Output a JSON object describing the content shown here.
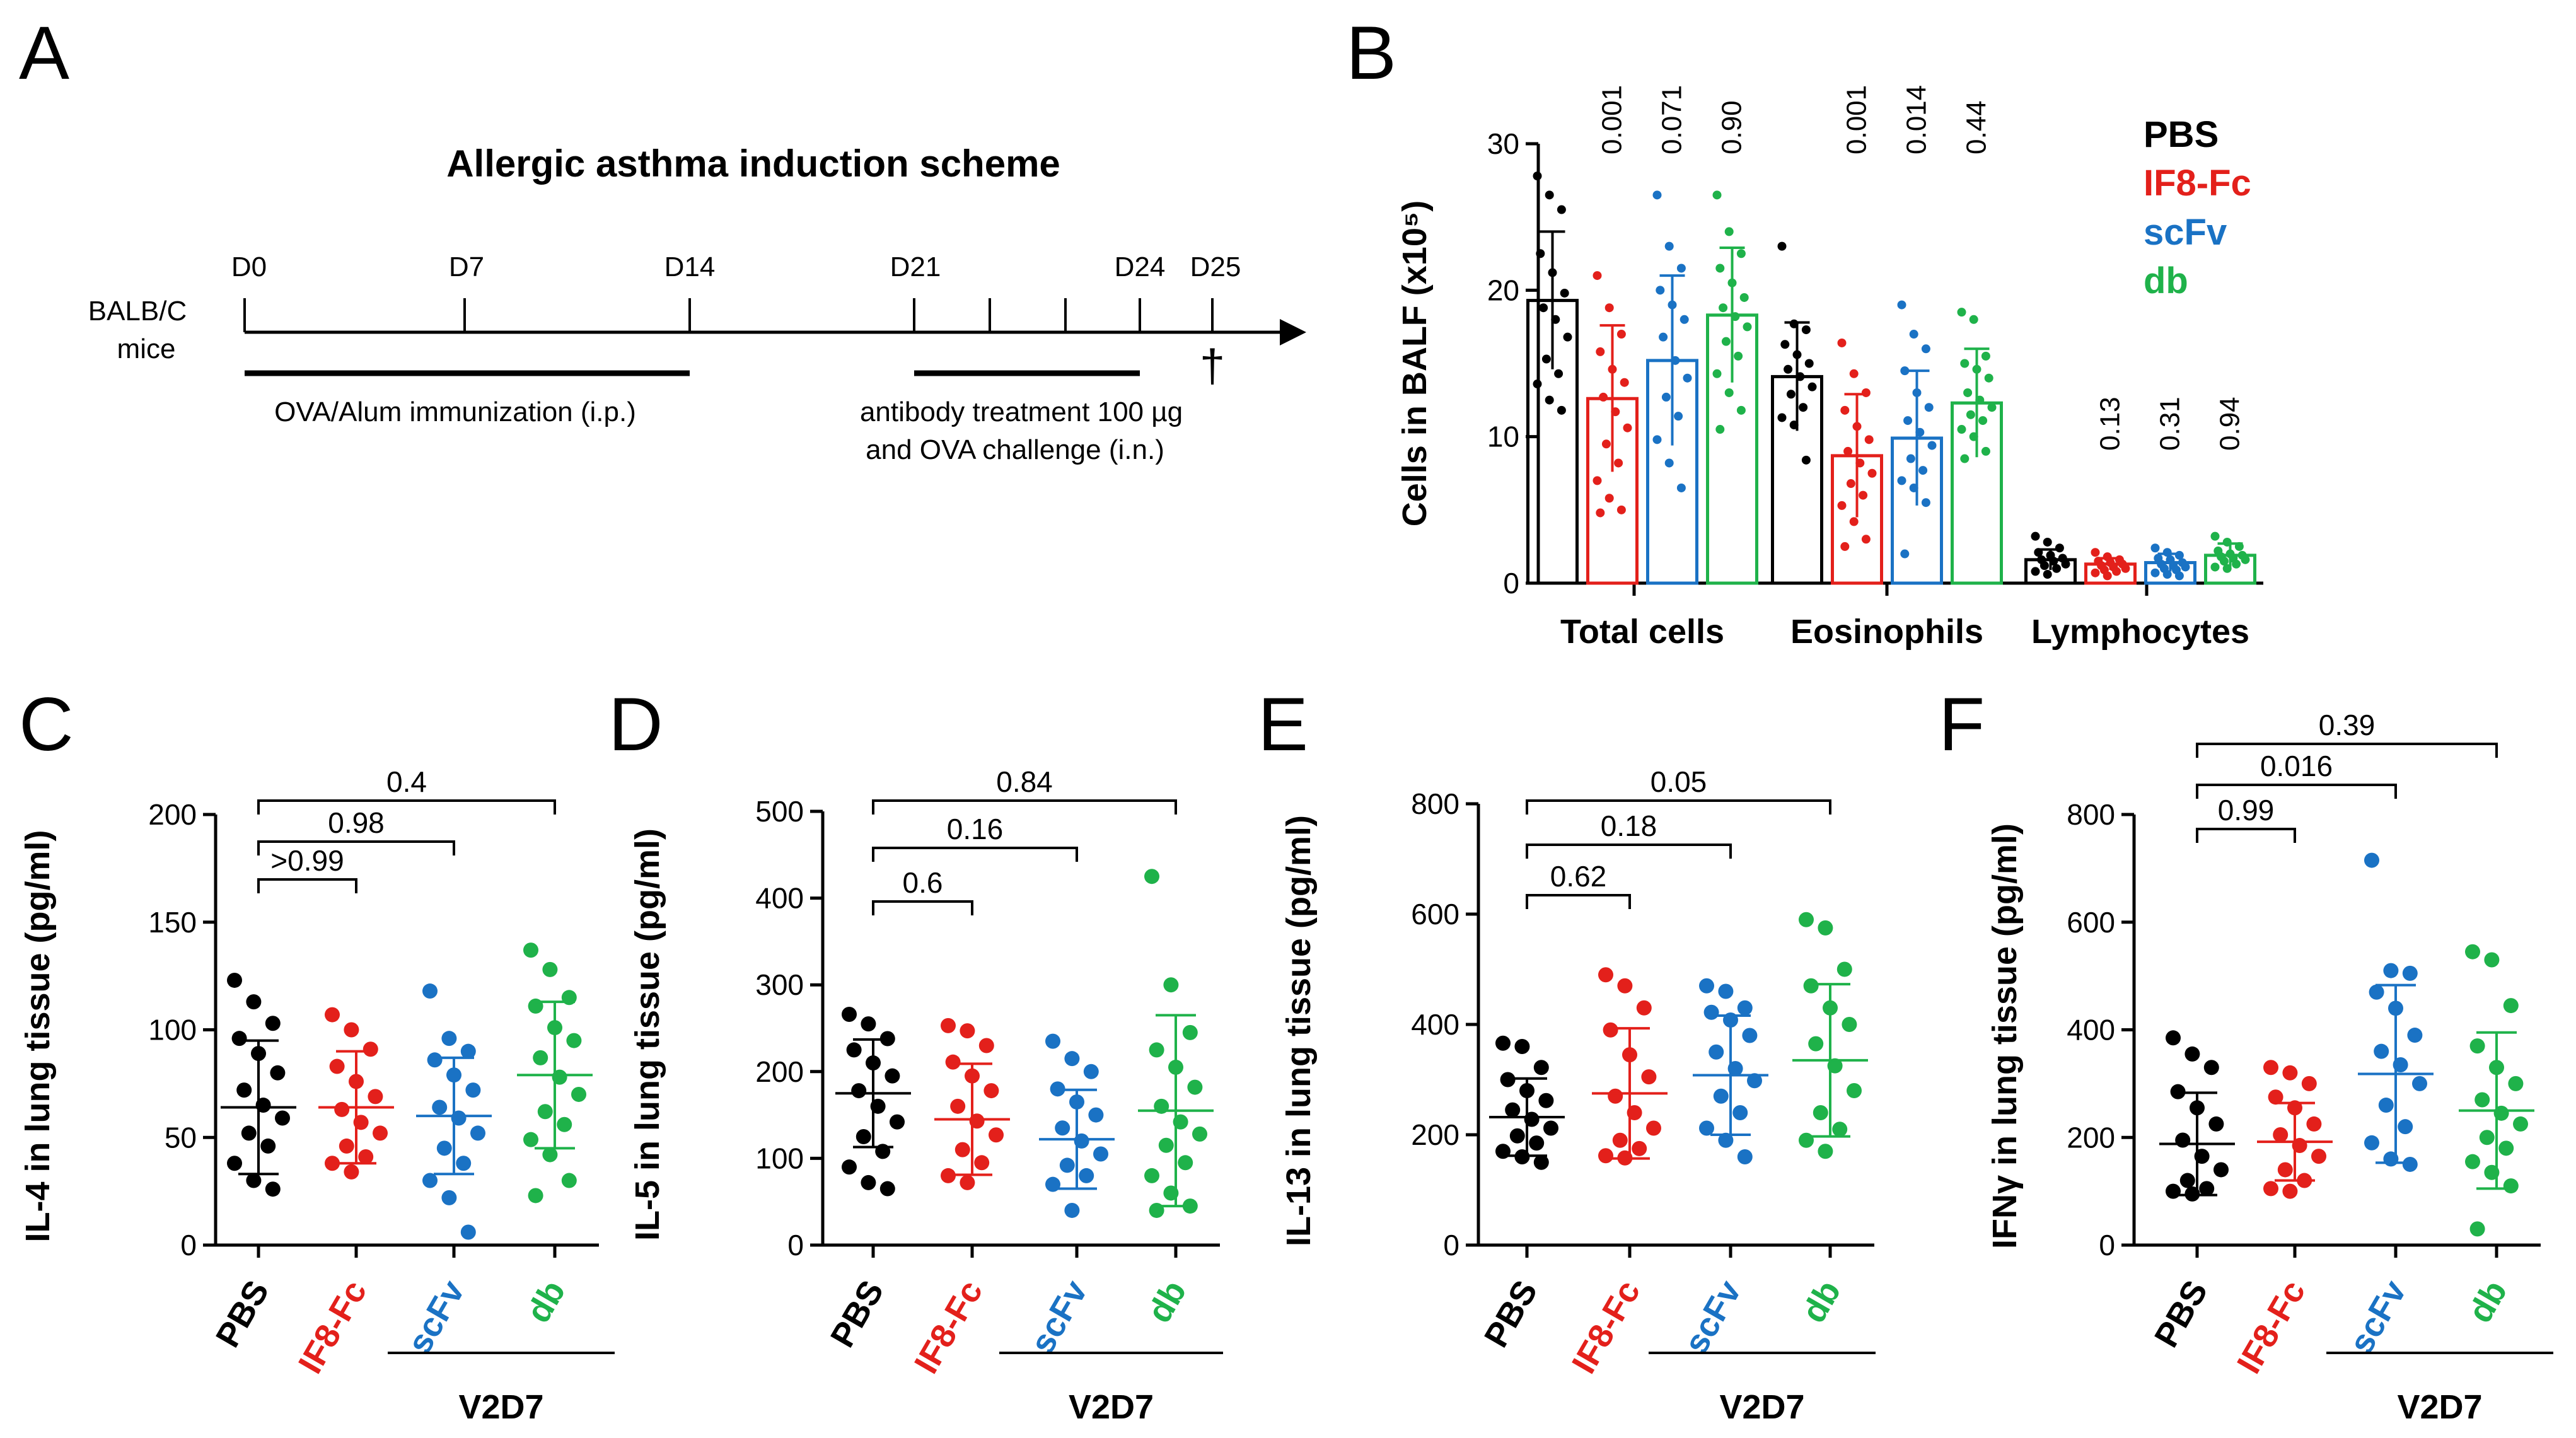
{
  "colors": {
    "pbs": "#000000",
    "if8fc": "#e3201b",
    "scfv": "#1a72c4",
    "db": "#1fb24a"
  },
  "scheme": {
    "panel_label": "A",
    "title": "Allergic asthma induction scheme",
    "subject_line1": "BALB/C",
    "subject_line2": "mice",
    "days": [
      "D0",
      "D7",
      "D14",
      "D21",
      "D24",
      "D25"
    ],
    "immunization": "OVA/Alum immunization (i.p.)",
    "treatment_line1": "antibody treatment 100 µg",
    "treatment_line2": "and OVA challenge (i.n.)",
    "sacrifice": "†"
  },
  "chart_data": [
    {
      "panel": "B",
      "type": "bar",
      "ylabel": "Cells in BALF (x10⁵)",
      "ylim": [
        0,
        30
      ],
      "yticks": [
        0,
        10,
        20,
        30
      ],
      "categories": [
        "Total cells",
        "Eosinophils",
        "Lymphocytes"
      ],
      "legend": [
        "PBS",
        "IF8-Fc",
        "scFv",
        "db"
      ],
      "series": [
        {
          "name": "PBS",
          "values": [
            19.3,
            14.1,
            1.6
          ],
          "errors": [
            4.7,
            3.7,
            0.7
          ],
          "points": [
            [
              27.8,
              26.5,
              25.5,
              22.5,
              21.2,
              19.8,
              18.8,
              18.0,
              16.8,
              15.3,
              14.3,
              13.6,
              12.5,
              11.8
            ],
            [
              23.0,
              17.7,
              17.3,
              16.3,
              15.6,
              15.0,
              14.6,
              14.1,
              13.4,
              12.9,
              12.0,
              11.3,
              10.8,
              8.4
            ],
            [
              3.2,
              2.8,
              2.4,
              2.1,
              1.9,
              1.7,
              1.6,
              1.5,
              1.3,
              1.2,
              1.0,
              0.8,
              0.6
            ]
          ]
        },
        {
          "name": "IF8-Fc",
          "values": [
            12.6,
            8.7,
            1.3
          ],
          "errors": [
            5.0,
            4.2,
            0.4
          ],
          "points": [
            [
              21.0,
              18.8,
              17.0,
              15.8,
              14.6,
              13.7,
              12.7,
              11.7,
              10.6,
              9.5,
              8.2,
              7.0,
              5.8,
              5.0,
              4.8
            ],
            [
              16.4,
              14.3,
              13.0,
              11.8,
              10.7,
              9.8,
              9.0,
              8.2,
              7.5,
              6.8,
              6.0,
              5.3,
              4.2,
              3.0,
              2.5
            ],
            [
              2.1,
              1.8,
              1.6,
              1.5,
              1.4,
              1.3,
              1.2,
              1.1,
              1.0,
              0.9,
              0.8,
              0.7,
              0.5
            ]
          ]
        },
        {
          "name": "scFv",
          "values": [
            15.2,
            9.9,
            1.4
          ],
          "errors": [
            5.8,
            4.6,
            0.6
          ],
          "points": [
            [
              26.5,
              23.0,
              21.5,
              20.0,
              19.0,
              18.0,
              16.8,
              15.2,
              14.0,
              12.7,
              11.4,
              9.8,
              8.2,
              6.5
            ],
            [
              19.0,
              17.0,
              16.0,
              14.5,
              13.0,
              12.0,
              11.1,
              10.3,
              9.4,
              8.5,
              7.7,
              7.0,
              6.5,
              5.5,
              2.0
            ],
            [
              2.4,
              2.1,
              1.9,
              1.7,
              1.6,
              1.4,
              1.3,
              1.2,
              1.1,
              1.0,
              0.9,
              0.7,
              0.6,
              0.5
            ]
          ]
        },
        {
          "name": "db",
          "values": [
            18.3,
            12.3,
            1.9
          ],
          "errors": [
            4.6,
            3.7,
            0.8
          ],
          "points": [
            [
              26.5,
              24.0,
              22.5,
              21.5,
              20.5,
              19.5,
              18.8,
              18.2,
              17.5,
              16.5,
              15.5,
              14.3,
              13.0,
              11.8,
              10.5
            ],
            [
              18.5,
              18.0,
              15.5,
              15.0,
              14.6,
              14.0,
              13.0,
              12.5,
              12.0,
              11.5,
              11.1,
              10.5,
              10.0,
              9.0,
              8.5
            ],
            [
              3.2,
              2.8,
              2.5,
              2.2,
              2.0,
              1.9,
              1.8,
              1.7,
              1.6,
              1.5,
              1.3,
              1.1,
              1.0
            ]
          ]
        }
      ],
      "pvalues": [
        [
          "0.001",
          "0.071",
          "0.90"
        ],
        [
          "0.001",
          "0.014",
          "0.44"
        ],
        [
          "0.13",
          "0.31",
          "0.94"
        ]
      ]
    },
    {
      "panel": "C",
      "type": "scatter",
      "ylabel": "IL-4 in lung tissue (pg/ml)",
      "ylim": [
        0,
        200
      ],
      "yticks": [
        0,
        50,
        100,
        150,
        200
      ],
      "categories": [
        "PBS",
        "IF8-Fc",
        "scFv",
        "db"
      ],
      "group_label": "V2D7",
      "series": [
        {
          "name": "PBS",
          "mean": 64,
          "sd": 31,
          "points": [
            123,
            113,
            103,
            96,
            89,
            80,
            72,
            65,
            59,
            52,
            46,
            38,
            30,
            26
          ]
        },
        {
          "name": "IF8-Fc",
          "mean": 64,
          "sd": 26,
          "points": [
            107,
            100,
            91,
            83,
            76,
            69,
            63,
            57,
            52,
            46,
            41,
            38,
            34
          ]
        },
        {
          "name": "scFv",
          "mean": 60,
          "sd": 27,
          "points": [
            118,
            96,
            90,
            86,
            79,
            72,
            64,
            59,
            52,
            45,
            38,
            30,
            22,
            6
          ]
        },
        {
          "name": "db",
          "mean": 79,
          "sd": 34,
          "points": [
            137,
            128,
            115,
            111,
            101,
            95,
            87,
            78,
            70,
            62,
            56,
            49,
            42,
            30,
            23
          ]
        }
      ],
      "brackets": [
        {
          "from": 0,
          "to": 1,
          "p": ">0.99"
        },
        {
          "from": 0,
          "to": 2,
          "p": "0.98"
        },
        {
          "from": 0,
          "to": 3,
          "p": "0.4"
        }
      ]
    },
    {
      "panel": "D",
      "type": "scatter",
      "ylabel": "IL-5 in lung tissue (pg/ml)",
      "ylim": [
        0,
        500
      ],
      "yticks": [
        0,
        100,
        200,
        300,
        400,
        500
      ],
      "categories": [
        "PBS",
        "IF8-Fc",
        "scFv",
        "db"
      ],
      "group_label": "V2D7",
      "series": [
        {
          "name": "PBS",
          "mean": 175,
          "sd": 62,
          "points": [
            266,
            255,
            238,
            225,
            210,
            195,
            178,
            160,
            142,
            125,
            108,
            90,
            72,
            65
          ]
        },
        {
          "name": "IF8-Fc",
          "mean": 145,
          "sd": 64,
          "points": [
            253,
            247,
            230,
            211,
            195,
            178,
            160,
            143,
            127,
            110,
            95,
            80,
            72
          ]
        },
        {
          "name": "scFv",
          "mean": 122,
          "sd": 57,
          "points": [
            235,
            215,
            200,
            180,
            165,
            150,
            135,
            120,
            105,
            92,
            80,
            70,
            40
          ]
        },
        {
          "name": "db",
          "mean": 155,
          "sd": 110,
          "points": [
            425,
            300,
            245,
            225,
            205,
            182,
            160,
            142,
            128,
            115,
            95,
            80,
            60,
            45,
            40
          ]
        }
      ],
      "brackets": [
        {
          "from": 0,
          "to": 1,
          "p": "0.6"
        },
        {
          "from": 0,
          "to": 2,
          "p": "0.16"
        },
        {
          "from": 0,
          "to": 3,
          "p": "0.84"
        }
      ]
    },
    {
      "panel": "E",
      "type": "scatter",
      "ylabel": "IL-13 in lung tissue (pg/ml)",
      "ylim": [
        0,
        800
      ],
      "yticks": [
        0,
        200,
        400,
        600,
        800
      ],
      "categories": [
        "PBS",
        "IF8-Fc",
        "scFv",
        "db"
      ],
      "group_label": "V2D7",
      "series": [
        {
          "name": "PBS",
          "mean": 232,
          "sd": 70,
          "points": [
            366,
            360,
            322,
            300,
            280,
            262,
            245,
            228,
            212,
            198,
            185,
            170,
            160,
            150
          ]
        },
        {
          "name": "IF8-Fc",
          "mean": 275,
          "sd": 118,
          "points": [
            490,
            470,
            430,
            390,
            345,
            305,
            270,
            240,
            212,
            190,
            175,
            162,
            158
          ]
        },
        {
          "name": "scFv",
          "mean": 308,
          "sd": 108,
          "points": [
            470,
            460,
            430,
            422,
            408,
            380,
            350,
            320,
            298,
            270,
            240,
            212,
            190,
            160
          ]
        },
        {
          "name": "db",
          "mean": 335,
          "sd": 138,
          "points": [
            590,
            575,
            500,
            470,
            430,
            400,
            365,
            325,
            280,
            240,
            210,
            190,
            170
          ]
        }
      ],
      "brackets": [
        {
          "from": 0,
          "to": 1,
          "p": "0.62"
        },
        {
          "from": 0,
          "to": 2,
          "p": "0.18"
        },
        {
          "from": 0,
          "to": 3,
          "p": "0.05"
        }
      ]
    },
    {
      "panel": "F",
      "type": "scatter",
      "ylabel": "IFNγ in lung tissue (pg/ml)",
      "ylim": [
        0,
        800
      ],
      "yticks": [
        0,
        200,
        400,
        600,
        800
      ],
      "categories": [
        "PBS",
        "IF8-Fc",
        "scFv",
        "db"
      ],
      "group_label": "V2D7",
      "series": [
        {
          "name": "PBS",
          "mean": 188,
          "sd": 95,
          "points": [
            385,
            355,
            330,
            285,
            255,
            225,
            195,
            165,
            140,
            120,
            105,
            100,
            95
          ]
        },
        {
          "name": "IF8-Fc",
          "mean": 192,
          "sd": 72,
          "points": [
            330,
            320,
            300,
            275,
            255,
            225,
            205,
            185,
            165,
            140,
            120,
            105,
            100
          ]
        },
        {
          "name": "scFv",
          "mean": 318,
          "sd": 165,
          "points": [
            715,
            510,
            505,
            470,
            440,
            390,
            360,
            335,
            300,
            260,
            220,
            190,
            160,
            150
          ]
        },
        {
          "name": "db",
          "mean": 250,
          "sd": 145,
          "points": [
            545,
            530,
            445,
            370,
            330,
            300,
            270,
            245,
            225,
            200,
            180,
            155,
            135,
            110,
            30
          ]
        }
      ],
      "brackets": [
        {
          "from": 0,
          "to": 1,
          "p": "0.99"
        },
        {
          "from": 0,
          "to": 2,
          "p": "0.016"
        },
        {
          "from": 0,
          "to": 3,
          "p": "0.39"
        }
      ]
    }
  ]
}
